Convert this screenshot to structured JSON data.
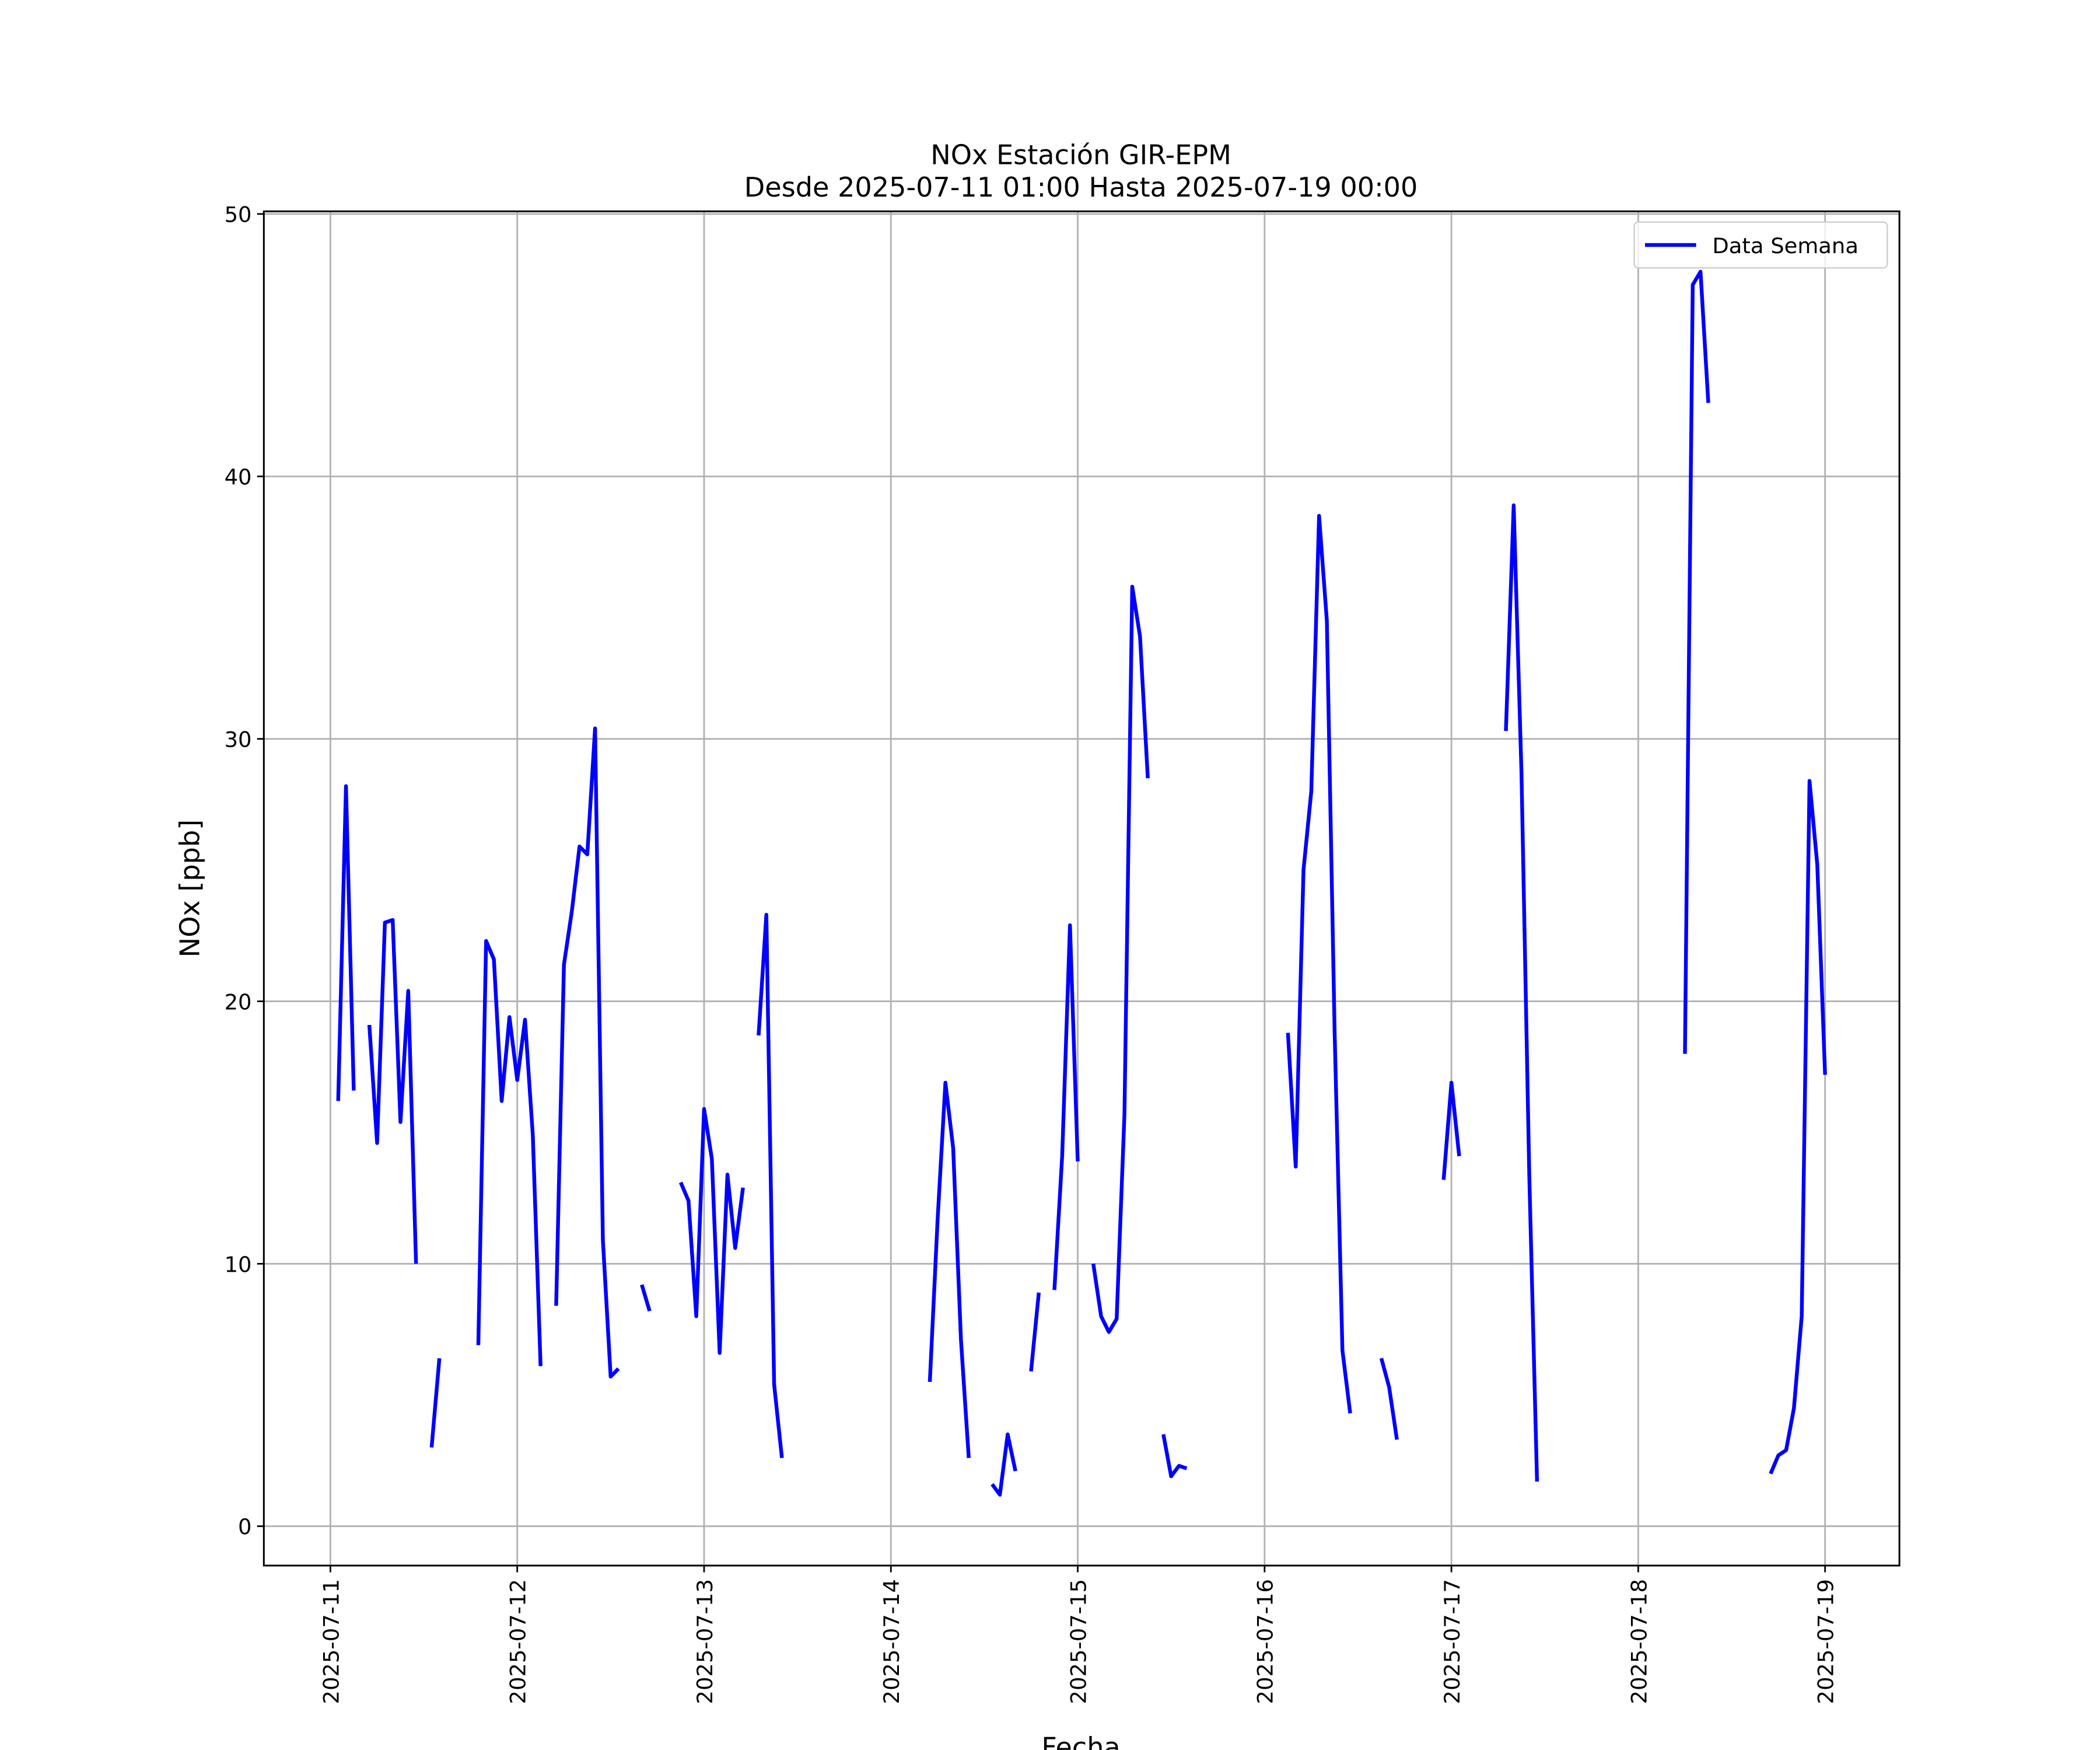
{
  "chart_data": {
    "type": "line",
    "title": "NOx Estación GIR-EPM",
    "subtitle": "Desde 2025-07-11 01:00 Hasta 2025-07-19 00:00",
    "x_label": "Fecha",
    "y_label": "NOx [ppb]",
    "legend": "upper right",
    "grid": true,
    "xlim": [
      "2025-07-10 15:27",
      "2025-07-19 09:33"
    ],
    "xticks": [
      "2025-07-11",
      "2025-07-12",
      "2025-07-13",
      "2025-07-14",
      "2025-07-15",
      "2025-07-16",
      "2025-07-17",
      "2025-07-18",
      "2025-07-19"
    ],
    "ylim": [
      -1.5,
      50.1
    ],
    "yticks": [
      0,
      10,
      20,
      30,
      40,
      50
    ],
    "x": [
      "2025-07-11 01:00",
      "2025-07-11 02:00",
      "2025-07-11 03:00",
      "2025-07-11 04:00",
      "2025-07-11 05:00",
      "2025-07-11 06:00",
      "2025-07-11 07:00",
      "2025-07-11 08:00",
      "2025-07-11 09:00",
      "2025-07-11 10:00",
      "2025-07-11 11:00",
      "2025-07-11 12:00",
      "2025-07-11 13:00",
      "2025-07-11 14:00",
      "2025-07-11 15:00",
      "2025-07-11 19:00",
      "2025-07-11 20:00",
      "2025-07-11 21:00",
      "2025-07-11 22:00",
      "2025-07-11 23:00",
      "2025-07-12 00:00",
      "2025-07-12 01:00",
      "2025-07-12 02:00",
      "2025-07-12 03:00",
      "2025-07-12 04:00",
      "2025-07-12 05:00",
      "2025-07-12 06:00",
      "2025-07-12 07:00",
      "2025-07-12 08:00",
      "2025-07-12 09:00",
      "2025-07-12 10:00",
      "2025-07-12 11:00",
      "2025-07-12 12:00",
      "2025-07-12 13:00",
      "2025-07-12 14:00",
      "2025-07-12 16:00",
      "2025-07-12 17:00",
      "2025-07-12 18:00",
      "2025-07-12 21:00",
      "2025-07-12 22:00",
      "2025-07-12 23:00",
      "2025-07-13 00:00",
      "2025-07-13 01:00",
      "2025-07-13 02:00",
      "2025-07-13 03:00",
      "2025-07-13 04:00",
      "2025-07-13 05:00",
      "2025-07-13 06:00",
      "2025-07-13 07:00",
      "2025-07-13 08:00",
      "2025-07-13 09:00",
      "2025-07-13 10:00",
      "2025-07-13 11:00",
      "2025-07-14 05:00",
      "2025-07-14 06:00",
      "2025-07-14 07:00",
      "2025-07-14 08:00",
      "2025-07-14 09:00",
      "2025-07-14 10:00",
      "2025-07-14 11:00",
      "2025-07-14 13:00",
      "2025-07-14 14:00",
      "2025-07-14 15:00",
      "2025-07-14 16:00",
      "2025-07-14 17:00",
      "2025-07-14 18:00",
      "2025-07-14 19:00",
      "2025-07-14 20:00",
      "2025-07-14 21:00",
      "2025-07-14 22:00",
      "2025-07-14 23:00",
      "2025-07-15 00:00",
      "2025-07-15 01:00",
      "2025-07-15 02:00",
      "2025-07-15 03:00",
      "2025-07-15 04:00",
      "2025-07-15 05:00",
      "2025-07-15 06:00",
      "2025-07-15 07:00",
      "2025-07-15 08:00",
      "2025-07-15 09:00",
      "2025-07-15 10:00",
      "2025-07-15 11:00",
      "2025-07-15 12:00",
      "2025-07-15 13:00",
      "2025-07-15 14:00",
      "2025-07-15 15:00",
      "2025-07-16 03:00",
      "2025-07-16 04:00",
      "2025-07-16 05:00",
      "2025-07-16 06:00",
      "2025-07-16 07:00",
      "2025-07-16 08:00",
      "2025-07-16 09:00",
      "2025-07-16 10:00",
      "2025-07-16 11:00",
      "2025-07-16 12:00",
      "2025-07-16 15:00",
      "2025-07-16 16:00",
      "2025-07-16 17:00",
      "2025-07-16 18:00",
      "2025-07-16 23:00",
      "2025-07-17 00:00",
      "2025-07-17 01:00",
      "2025-07-17 02:00",
      "2025-07-17 07:00",
      "2025-07-17 08:00",
      "2025-07-17 09:00",
      "2025-07-17 10:00",
      "2025-07-17 11:00",
      "2025-07-17 12:00",
      "2025-07-18 06:00",
      "2025-07-18 07:00",
      "2025-07-18 08:00",
      "2025-07-18 09:00",
      "2025-07-18 10:00",
      "2025-07-18 17:00",
      "2025-07-18 18:00",
      "2025-07-18 19:00",
      "2025-07-18 20:00",
      "2025-07-18 21:00",
      "2025-07-18 22:00",
      "2025-07-18 23:00",
      "2025-07-19 00:00"
    ],
    "series": [
      {
        "name": "Data Semana",
        "color": "#0000ff",
        "values": [
          16.2,
          28.2,
          16.6,
          null,
          19.1,
          14.6,
          23.0,
          23.1,
          15.4,
          20.4,
          10.0,
          null,
          3.0,
          6.4,
          null,
          6.9,
          22.3,
          21.6,
          16.2,
          19.4,
          17.0,
          19.3,
          14.9,
          6.1,
          null,
          8.4,
          21.4,
          23.4,
          25.9,
          25.6,
          30.4,
          10.9,
          5.7,
          6.0,
          null,
          9.2,
          8.2,
          null,
          13.1,
          12.4,
          8.0,
          15.9,
          14.0,
          6.6,
          13.4,
          10.6,
          12.9,
          null,
          18.7,
          23.3,
          5.4,
          2.6,
          null,
          5.5,
          11.7,
          16.9,
          14.4,
          7.1,
          2.6,
          null,
          1.6,
          1.2,
          3.5,
          2.1,
          null,
          5.9,
          8.9,
          null,
          9.0,
          14.1,
          22.9,
          13.9,
          null,
          10.0,
          8.0,
          7.4,
          7.9,
          15.7,
          35.8,
          33.9,
          28.5,
          null,
          3.5,
          1.9,
          2.3,
          2.2,
          null,
          18.8,
          13.7,
          25.0,
          28.0,
          38.5,
          34.5,
          18.8,
          6.7,
          4.3,
          null,
          6.4,
          5.3,
          3.3,
          null,
          13.2,
          16.9,
          14.1,
          null,
          30.3,
          38.9,
          28.7,
          13.4,
          1.7,
          null,
          18.0,
          47.3,
          47.8,
          42.8,
          null,
          2.0,
          2.7,
          2.9,
          4.5,
          8.0,
          28.4,
          25.2,
          17.2
        ]
      }
    ]
  }
}
